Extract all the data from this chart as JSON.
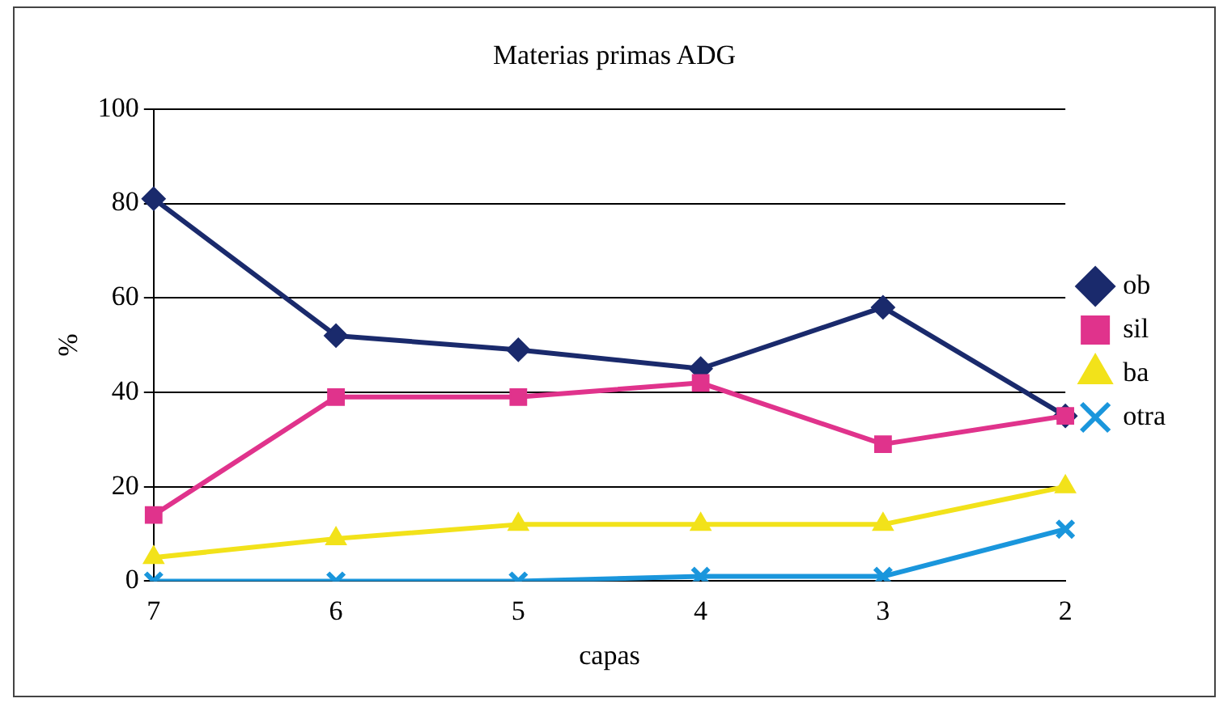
{
  "chart_data": {
    "type": "line",
    "title": "Materias primas ADG",
    "xlabel": "capas",
    "ylabel": "%",
    "categories": [
      "7",
      "6",
      "5",
      "4",
      "3",
      "2"
    ],
    "ylim": [
      0,
      100
    ],
    "yticks": [
      0,
      20,
      40,
      60,
      80,
      100
    ],
    "grid": "y",
    "legend": "right",
    "series": [
      {
        "name": "ob",
        "color": "#1a2a6c",
        "marker": "diamond",
        "values": [
          81,
          52,
          49,
          45,
          58,
          35
        ]
      },
      {
        "name": "sil",
        "color": "#e0338c",
        "marker": "square",
        "values": [
          14,
          39,
          39,
          42,
          29,
          35
        ]
      },
      {
        "name": "ba",
        "color": "#f2e21a",
        "marker": "triangle",
        "values": [
          5,
          9,
          12,
          12,
          12,
          20
        ]
      },
      {
        "name": "otra",
        "color": "#1a96dc",
        "marker": "cross",
        "values": [
          0,
          0,
          0,
          1,
          1,
          11
        ]
      }
    ]
  }
}
